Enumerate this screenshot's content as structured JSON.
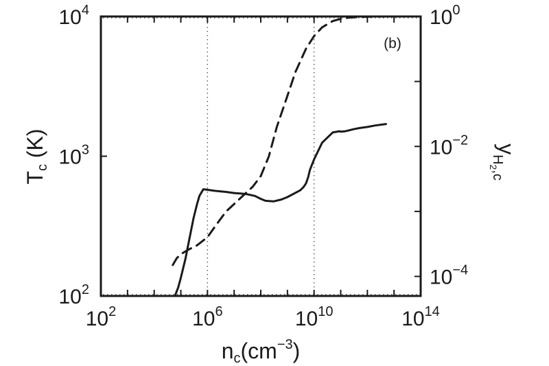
{
  "chart_data": {
    "type": "line",
    "panel_label": "(b)",
    "xlabel": {
      "base": "n",
      "sub": "c",
      "unit_open": "(cm",
      "unit_exp": "−3",
      "unit_close": ")"
    },
    "ylabel_left": {
      "base": "T",
      "sub": "c",
      "rest": " (K)"
    },
    "ylabel_right": {
      "base": "y",
      "sub": "H",
      "subsub": "2",
      "subrest": ",c"
    },
    "x_scale": "log",
    "xlim": [
      100,
      100000000000000
    ],
    "x_ticks": [
      {
        "value": 100,
        "base": "10",
        "exp": "2"
      },
      {
        "value": 1000000,
        "base": "10",
        "exp": "6"
      },
      {
        "value": 10000000000,
        "base": "10",
        "exp": "10"
      },
      {
        "value": 100000000000000,
        "base": "10",
        "exp": "14"
      }
    ],
    "y_left_scale": "log",
    "ylim_left": [
      100,
      10000
    ],
    "y_left_ticks": [
      {
        "value": 100,
        "base": "10",
        "exp": "2"
      },
      {
        "value": 1000,
        "base": "10",
        "exp": "3"
      },
      {
        "value": 10000,
        "base": "10",
        "exp": "4"
      }
    ],
    "y_right_scale": "log",
    "ylim_right": [
      5e-05,
      1
    ],
    "y_right_ticks": [
      {
        "value": 1,
        "base": "10",
        "exp": "0"
      },
      {
        "value": 0.01,
        "base": "10",
        "exp": "−2"
      },
      {
        "value": 0.0001,
        "base": "10",
        "exp": "−4"
      }
    ],
    "grid": false,
    "series": [
      {
        "axis": "left",
        "style": "solid",
        "x": [
          60000,
          80000,
          100000,
          150000,
          200000,
          300000,
          400000,
          500000,
          700000,
          1000000,
          2000000,
          5000000,
          10000000,
          20000000,
          30000000,
          60000000,
          100000000,
          150000000,
          300000000,
          600000000,
          1000000000,
          3000000000,
          4000000000,
          5000000000,
          6000000000,
          7000000000,
          10000000000,
          20000000000,
          50000000000,
          90000000000,
          100000000000,
          150000000000,
          200000000000,
          300000000000,
          500000000000,
          1000000000000,
          2000000000000,
          5000000000000
        ],
        "y": [
          100,
          115,
          135,
          185,
          245,
          360,
          450,
          520,
          580,
          575,
          565,
          555,
          545,
          540,
          535,
          520,
          495,
          480,
          475,
          490,
          510,
          570,
          600,
          640,
          710,
          800,
          950,
          1250,
          1480,
          1510,
          1500,
          1510,
          1530,
          1560,
          1590,
          1620,
          1660,
          1700
        ]
      },
      {
        "axis": "right",
        "style": "dashed",
        "x": [
          50000,
          70000,
          100000,
          200000,
          400000,
          1000000,
          2000000,
          5000000,
          10000000,
          20000000,
          50000000,
          100000000,
          200000000,
          400000000,
          1000000000,
          2000000000,
          5000000000,
          10000000000,
          20000000000,
          50000000000,
          100000000000,
          200000000000,
          500000000000,
          1000000000000,
          5000000000000
        ],
        "y": [
          0.00015,
          0.00019,
          0.00022,
          0.00026,
          0.0003,
          0.0004,
          0.0006,
          0.001,
          0.0013,
          0.0017,
          0.0024,
          0.0035,
          0.007,
          0.02,
          0.06,
          0.14,
          0.32,
          0.5,
          0.68,
          0.85,
          0.92,
          0.96,
          0.98,
          0.99,
          1.0
        ]
      }
    ]
  }
}
